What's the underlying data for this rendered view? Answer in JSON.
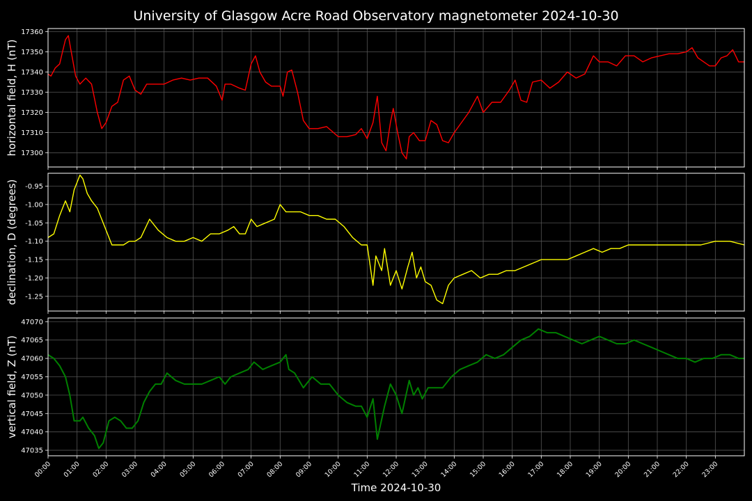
{
  "chart_data": {
    "type": "line",
    "title": "University of Glasgow Acre Road Observatory magnetometer 2024-10-30",
    "xlabel": "Time 2024-10-30",
    "x_ticks": [
      "00:00",
      "01:00",
      "02:00",
      "03:00",
      "04:00",
      "05:00",
      "06:00",
      "07:00",
      "08:00",
      "09:00",
      "10:00",
      "11:00",
      "12:00",
      "13:00",
      "14:00",
      "15:00",
      "16:00",
      "17:00",
      "18:00",
      "19:00",
      "20:00",
      "21:00",
      "22:00",
      "23:00"
    ],
    "xlim": [
      0,
      24
    ],
    "grid": true,
    "panels": [
      {
        "ylabel": "horizontal field, H (nT)",
        "color": "#ff0000",
        "ylim": [
          17293,
          17361.5
        ],
        "y_ticks": [
          17300,
          17310,
          17320,
          17330,
          17340,
          17350,
          17360
        ],
        "series": {
          "x": [
            0,
            0.1,
            0.25,
            0.4,
            0.5,
            0.6,
            0.7,
            0.8,
            0.95,
            1.1,
            1.3,
            1.5,
            1.7,
            1.85,
            2.0,
            2.2,
            2.4,
            2.6,
            2.8,
            3.0,
            3.2,
            3.4,
            3.6,
            3.8,
            4.0,
            4.3,
            4.6,
            4.9,
            5.2,
            5.5,
            5.8,
            6.0,
            6.1,
            6.3,
            6.6,
            6.8,
            7.0,
            7.15,
            7.3,
            7.5,
            7.7,
            8.0,
            8.1,
            8.25,
            8.4,
            8.6,
            8.8,
            9.0,
            9.3,
            9.6,
            10.0,
            10.3,
            10.6,
            10.8,
            11.0,
            11.2,
            11.35,
            11.5,
            11.65,
            11.8,
            11.9,
            12.05,
            12.2,
            12.35,
            12.45,
            12.6,
            12.8,
            13.0,
            13.2,
            13.4,
            13.6,
            13.8,
            14.0,
            14.2,
            14.5,
            14.8,
            15.0,
            15.3,
            15.6,
            15.9,
            16.1,
            16.3,
            16.5,
            16.7,
            17.0,
            17.3,
            17.6,
            17.9,
            18.2,
            18.5,
            18.8,
            19.0,
            19.3,
            19.6,
            19.9,
            20.2,
            20.5,
            20.8,
            21.1,
            21.4,
            21.7,
            22.0,
            22.2,
            22.4,
            22.6,
            22.8,
            23.0,
            23.2,
            23.4,
            23.6,
            23.8,
            24.0
          ],
          "y": [
            17339,
            17338,
            17342,
            17344,
            17350,
            17356,
            17358,
            17350,
            17338,
            17334,
            17337,
            17334,
            17320,
            17312,
            17315,
            17323,
            17325,
            17336,
            17338,
            17331,
            17329,
            17334,
            17334,
            17334,
            17334,
            17336,
            17337,
            17336,
            17337,
            17337,
            17333,
            17326,
            17334,
            17334,
            17332,
            17331,
            17344,
            17348,
            17340,
            17335,
            17333,
            17333,
            17328,
            17340,
            17341,
            17330,
            17316,
            17312,
            17312,
            17313,
            17308,
            17308,
            17309,
            17312,
            17307,
            17315,
            17328,
            17305,
            17301,
            17315,
            17322,
            17310,
            17300,
            17297,
            17308,
            17310,
            17306,
            17306,
            17316,
            17314,
            17306,
            17305,
            17310,
            17314,
            17320,
            17328,
            17320,
            17325,
            17325,
            17331,
            17336,
            17326,
            17325,
            17335,
            17336,
            17332,
            17335,
            17340,
            17337,
            17339,
            17348,
            17345,
            17345,
            17343,
            17348,
            17348,
            17345,
            17347,
            17348,
            17349,
            17349,
            17350,
            17352,
            17347,
            17345,
            17343,
            17343,
            17347,
            17348,
            17351,
            17345,
            17345
          ]
        }
      },
      {
        "ylabel": "declination, D (degrees)",
        "color": "#ffff00",
        "ylim": [
          -1.29,
          -0.915
        ],
        "y_ticks": [
          -1.25,
          -1.2,
          -1.15,
          -1.1,
          -1.05,
          -1.0,
          -0.95
        ],
        "tick_decimals": 2,
        "series": {
          "x": [
            0,
            0.2,
            0.4,
            0.6,
            0.75,
            0.9,
            1.1,
            1.2,
            1.35,
            1.5,
            1.7,
            2.0,
            2.2,
            2.4,
            2.6,
            2.8,
            3.0,
            3.2,
            3.5,
            3.8,
            4.1,
            4.4,
            4.7,
            5.0,
            5.3,
            5.6,
            5.9,
            6.2,
            6.4,
            6.6,
            6.8,
            7.0,
            7.2,
            7.5,
            7.8,
            8.0,
            8.2,
            8.4,
            8.7,
            9.0,
            9.3,
            9.6,
            9.9,
            10.2,
            10.5,
            10.8,
            11.0,
            11.2,
            11.3,
            11.5,
            11.6,
            11.8,
            12.0,
            12.2,
            12.4,
            12.55,
            12.7,
            12.85,
            13.0,
            13.2,
            13.4,
            13.6,
            13.8,
            14.0,
            14.3,
            14.6,
            14.9,
            15.2,
            15.5,
            15.8,
            16.1,
            16.4,
            16.7,
            17.0,
            17.3,
            17.6,
            17.9,
            18.2,
            18.5,
            18.8,
            19.1,
            19.4,
            19.7,
            20.0,
            20.5,
            21.0,
            21.5,
            22.0,
            22.5,
            23.0,
            23.5,
            24.0
          ],
          "y": [
            -1.09,
            -1.08,
            -1.03,
            -0.99,
            -1.02,
            -0.96,
            -0.92,
            -0.93,
            -0.97,
            -0.99,
            -1.01,
            -1.07,
            -1.11,
            -1.11,
            -1.11,
            -1.1,
            -1.1,
            -1.09,
            -1.04,
            -1.07,
            -1.09,
            -1.1,
            -1.1,
            -1.09,
            -1.1,
            -1.08,
            -1.08,
            -1.07,
            -1.06,
            -1.08,
            -1.08,
            -1.04,
            -1.06,
            -1.05,
            -1.04,
            -1.0,
            -1.02,
            -1.02,
            -1.02,
            -1.03,
            -1.03,
            -1.04,
            -1.04,
            -1.06,
            -1.09,
            -1.11,
            -1.11,
            -1.22,
            -1.14,
            -1.18,
            -1.12,
            -1.22,
            -1.18,
            -1.23,
            -1.17,
            -1.13,
            -1.2,
            -1.17,
            -1.21,
            -1.22,
            -1.26,
            -1.27,
            -1.22,
            -1.2,
            -1.19,
            -1.18,
            -1.2,
            -1.19,
            -1.19,
            -1.18,
            -1.18,
            -1.17,
            -1.16,
            -1.15,
            -1.15,
            -1.15,
            -1.15,
            -1.14,
            -1.13,
            -1.12,
            -1.13,
            -1.12,
            -1.12,
            -1.11,
            -1.11,
            -1.11,
            -1.11,
            -1.11,
            -1.11,
            -1.1,
            -1.1,
            -1.11
          ]
        }
      },
      {
        "ylabel": "vertical field, Z (nT)",
        "color": "#008000",
        "ylim": [
          47033.5,
          47071
        ],
        "y_ticks": [
          47035,
          47040,
          47045,
          47050,
          47055,
          47060,
          47065,
          47070
        ],
        "series": {
          "x": [
            0,
            0.2,
            0.4,
            0.6,
            0.75,
            0.9,
            1.1,
            1.2,
            1.4,
            1.6,
            1.75,
            1.9,
            2.1,
            2.3,
            2.5,
            2.7,
            2.9,
            3.1,
            3.3,
            3.5,
            3.7,
            3.9,
            4.1,
            4.4,
            4.7,
            5.0,
            5.3,
            5.6,
            5.9,
            6.1,
            6.3,
            6.6,
            6.9,
            7.1,
            7.4,
            7.7,
            8.0,
            8.2,
            8.3,
            8.5,
            8.8,
            9.1,
            9.4,
            9.7,
            10.0,
            10.3,
            10.6,
            10.8,
            11.0,
            11.2,
            11.35,
            11.6,
            11.8,
            12.0,
            12.2,
            12.45,
            12.6,
            12.75,
            12.9,
            13.1,
            13.3,
            13.6,
            13.9,
            14.2,
            14.5,
            14.8,
            15.1,
            15.4,
            15.7,
            16.0,
            16.3,
            16.6,
            16.9,
            17.2,
            17.5,
            17.8,
            18.1,
            18.4,
            18.7,
            19.0,
            19.3,
            19.6,
            19.9,
            20.2,
            20.5,
            20.8,
            21.1,
            21.4,
            21.7,
            22.0,
            22.3,
            22.6,
            22.9,
            23.2,
            23.5,
            23.8,
            24.0
          ],
          "y": [
            47061,
            47060,
            47058,
            47055,
            47050,
            47043,
            47043,
            47044,
            47041,
            47039,
            47035.5,
            47037,
            47043,
            47044,
            47043,
            47041,
            47041,
            47043,
            47048,
            47051,
            47053,
            47053,
            47056,
            47054,
            47053,
            47053,
            47053,
            47054,
            47055,
            47053,
            47055,
            47056,
            47057,
            47059,
            47057,
            47058,
            47059,
            47061,
            47057,
            47056,
            47052,
            47055,
            47053,
            47053,
            47050,
            47048,
            47047,
            47047,
            47044,
            47049,
            47038,
            47047,
            47053,
            47050,
            47045,
            47054,
            47050,
            47052,
            47049,
            47052,
            47052,
            47052,
            47055,
            47057,
            47058,
            47059,
            47061,
            47060,
            47061,
            47063,
            47065,
            47066,
            47068,
            47067,
            47067,
            47066,
            47065,
            47064,
            47065,
            47066,
            47065,
            47064,
            47064,
            47065,
            47064,
            47063,
            47062,
            47061,
            47060,
            47060,
            47059,
            47060,
            47060,
            47061,
            47061,
            47060,
            47060
          ]
        }
      }
    ]
  }
}
